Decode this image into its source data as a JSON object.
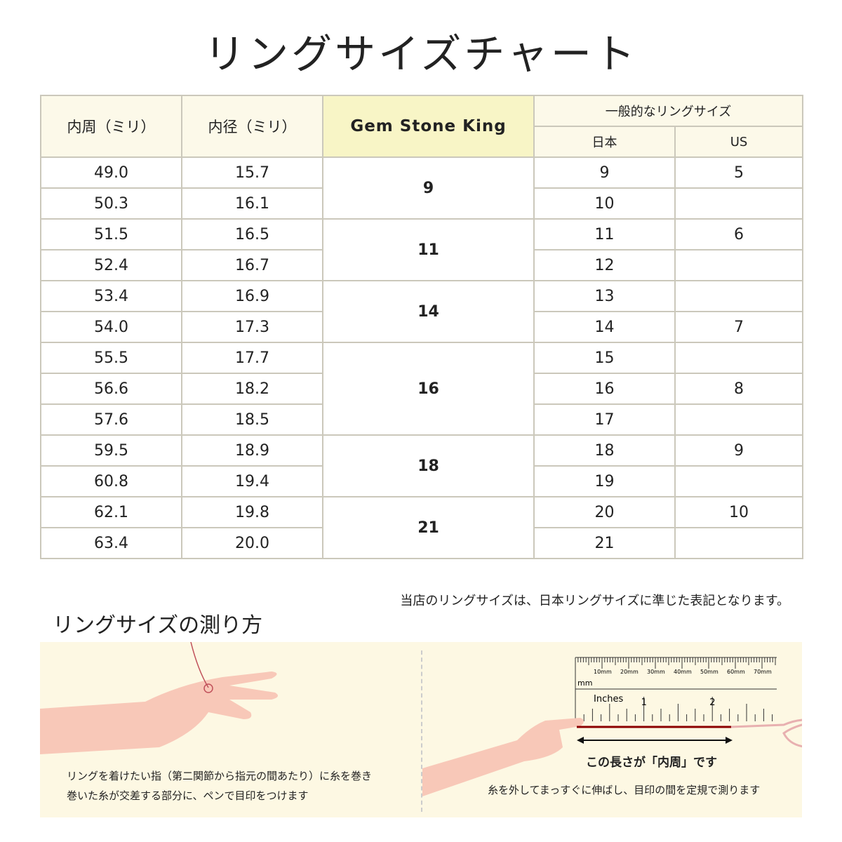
{
  "title": "リングサイズチャート",
  "table": {
    "headers": {
      "circumference": "内周（ミリ）",
      "diameter": "内径（ミリ）",
      "brand": "Gem Stone King",
      "general": "一般的なリングサイズ",
      "japan": "日本",
      "us": "US"
    },
    "rows": [
      {
        "circ": "49.0",
        "dia": "15.7",
        "jp": "9",
        "us": "5"
      },
      {
        "circ": "50.3",
        "dia": "16.1",
        "jp": "10",
        "us": ""
      },
      {
        "circ": "51.5",
        "dia": "16.5",
        "jp": "11",
        "us": "6"
      },
      {
        "circ": "52.4",
        "dia": "16.7",
        "jp": "12",
        "us": ""
      },
      {
        "circ": "53.4",
        "dia": "16.9",
        "jp": "13",
        "us": ""
      },
      {
        "circ": "54.0",
        "dia": "17.3",
        "jp": "14",
        "us": "7"
      },
      {
        "circ": "55.5",
        "dia": "17.7",
        "jp": "15",
        "us": ""
      },
      {
        "circ": "56.6",
        "dia": "18.2",
        "jp": "16",
        "us": "8"
      },
      {
        "circ": "57.6",
        "dia": "18.5",
        "jp": "17",
        "us": ""
      },
      {
        "circ": "59.5",
        "dia": "18.9",
        "jp": "18",
        "us": "9"
      },
      {
        "circ": "60.8",
        "dia": "19.4",
        "jp": "19",
        "us": ""
      },
      {
        "circ": "62.1",
        "dia": "19.8",
        "jp": "20",
        "us": "10"
      },
      {
        "circ": "63.4",
        "dia": "20.0",
        "jp": "21",
        "us": ""
      }
    ],
    "gem_groups": [
      {
        "size": "9",
        "rows": 2
      },
      {
        "size": "11",
        "rows": 2
      },
      {
        "size": "14",
        "rows": 2
      },
      {
        "size": "16",
        "rows": 3
      },
      {
        "size": "18",
        "rows": 2
      },
      {
        "size": "21",
        "rows": 2
      }
    ]
  },
  "note": "当店のリングサイズは、日本リングサイズに準じた表記となります。",
  "howto": {
    "heading": "リングサイズの測り方",
    "step1_line1": "リングを着けたい指（第二関節から指元の間あたり）に糸を巻き",
    "step1_line2": "巻いた糸が交差する部分に、ペンで目印をつけます",
    "ruler_mm_labels": [
      "10mm",
      "20mm",
      "30mm",
      "40mm",
      "50mm",
      "60mm",
      "70mm"
    ],
    "ruler_mm_unit": "mm",
    "ruler_inch_unit": "Inches",
    "ruler_inch_labels": [
      "1",
      "2"
    ],
    "length_label": "この長さが「内周」です",
    "step2": "糸を外してまっすぐに伸ばし、目印の間を定規で測ります"
  },
  "colors": {
    "header_bg": "#fcf9e9",
    "brand_bg": "#f8f5c6",
    "border": "#cbc8bb",
    "panel_bg": "#fdf8e3",
    "thread": "#8b0000",
    "skin": "#f8c8b8"
  }
}
